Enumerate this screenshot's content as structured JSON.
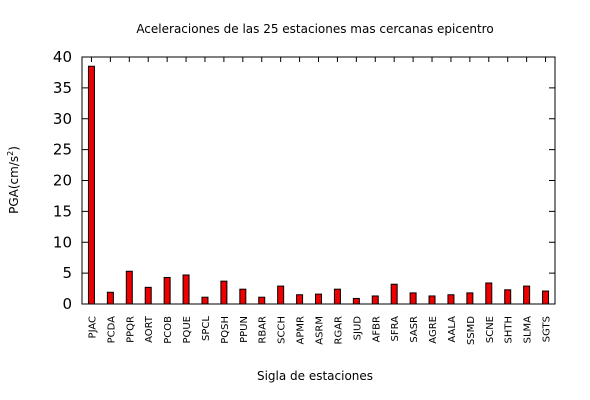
{
  "chart_data": {
    "type": "bar",
    "title": "Aceleraciones de las 25 estaciones mas cercanas epicentro",
    "xlabel": "Sigla de estaciones",
    "ylabel": "PGA(cm/s",
    "ylabel_sup": "2",
    "ylabel_end": ")",
    "ylim": [
      0,
      40
    ],
    "yticks": [
      0,
      5,
      10,
      15,
      20,
      25,
      30,
      35,
      40
    ],
    "grid": false,
    "bar_color": "#ee0000",
    "categories": [
      "PJAC",
      "PCDA",
      "PPQR",
      "AORT",
      "PCOB",
      "PQUE",
      "SPCL",
      "PQSH",
      "PPUN",
      "RBAR",
      "SCCH",
      "APMR",
      "ASRM",
      "RGAR",
      "SJUD",
      "AFBR",
      "SFRA",
      "SASR",
      "AGRE",
      "AALA",
      "SSMD",
      "SCNE",
      "SHTH",
      "SLMA",
      "SGTS"
    ],
    "values": [
      38.5,
      1.9,
      5.3,
      2.7,
      4.3,
      4.7,
      1.1,
      3.7,
      2.4,
      1.1,
      2.9,
      1.5,
      1.6,
      2.4,
      0.9,
      1.3,
      3.2,
      1.8,
      1.3,
      1.5,
      1.8,
      3.4,
      2.3,
      2.9,
      2.1
    ]
  }
}
